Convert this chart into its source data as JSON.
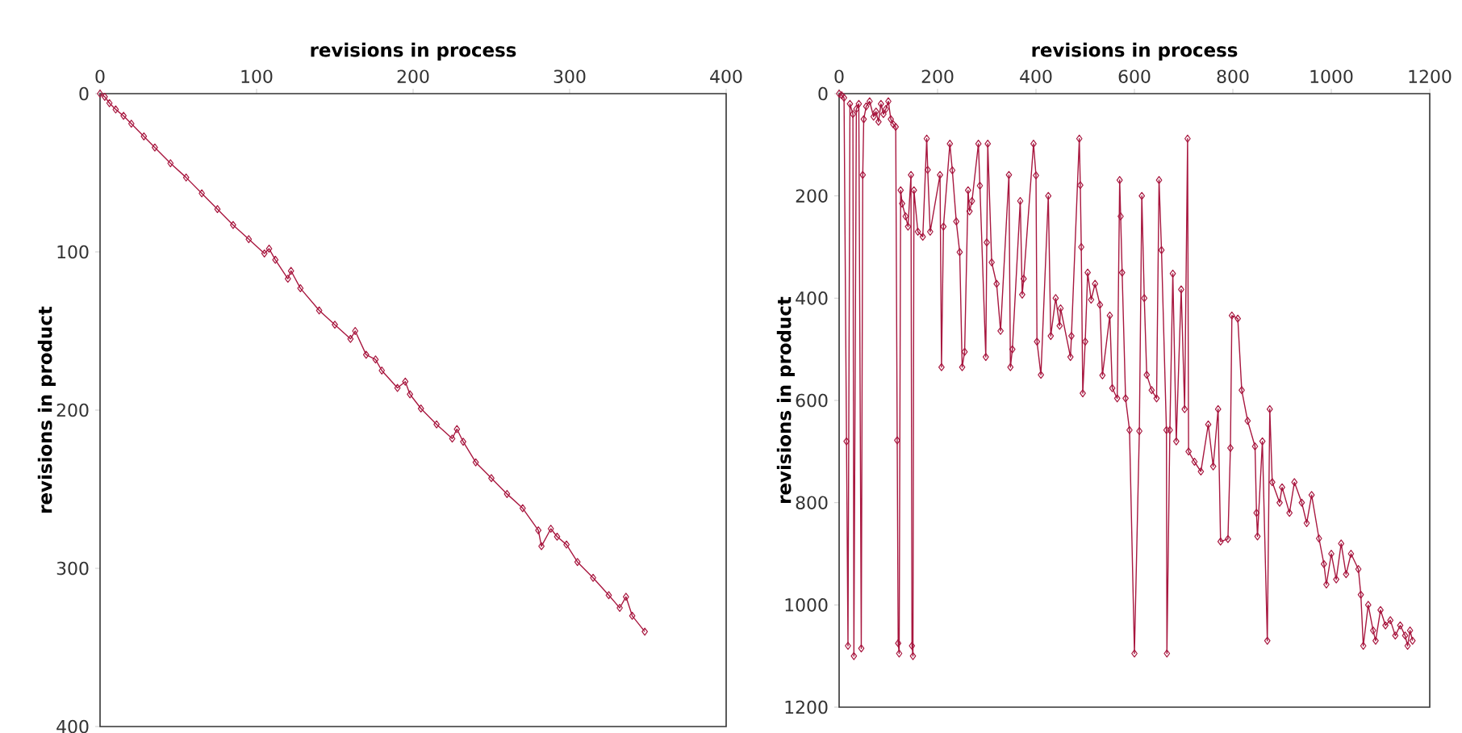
{
  "chart_data": [
    {
      "type": "line",
      "xlabel": "revisions in process",
      "ylabel": "revisions in product",
      "marker": "diamond",
      "line_style": "solid",
      "xlim": [
        0,
        400
      ],
      "ylim": [
        400,
        0
      ],
      "xticks": [
        0,
        100,
        200,
        300,
        400
      ],
      "yticks": [
        0,
        100,
        200,
        300,
        400
      ],
      "series": [
        {
          "color": "#a8173f",
          "x": [
            0,
            3,
            6,
            10,
            15,
            20,
            28,
            35,
            45,
            55,
            65,
            75,
            85,
            95,
            105,
            108,
            112,
            120,
            122,
            128,
            140,
            150,
            160,
            163,
            170,
            176,
            180,
            190,
            195,
            198,
            205,
            215,
            225,
            228,
            232,
            240,
            250,
            260,
            270,
            280,
            282,
            288,
            292,
            298,
            305,
            315,
            325,
            332,
            336,
            340,
            348
          ],
          "values": [
            0,
            2,
            6,
            10,
            14,
            19,
            27,
            34,
            44,
            53,
            63,
            73,
            83,
            92,
            101,
            98,
            105,
            117,
            112,
            123,
            137,
            146,
            155,
            150,
            165,
            168,
            175,
            186,
            182,
            190,
            199,
            209,
            218,
            212,
            220,
            233,
            243,
            253,
            262,
            276,
            286,
            275,
            280,
            285,
            296,
            306,
            317,
            325,
            318,
            330,
            340
          ]
        }
      ]
    },
    {
      "type": "line",
      "xlabel": "revisions in process",
      "ylabel": "revisions in product",
      "marker": "diamond",
      "line_style": "solid",
      "xlim": [
        0,
        1200
      ],
      "ylim": [
        1200,
        0
      ],
      "xticks": [
        0,
        200,
        400,
        600,
        800,
        1000,
        1200
      ],
      "yticks": [
        0,
        200,
        400,
        600,
        800,
        1000,
        1200
      ],
      "series": [
        {
          "color": "#a8173f",
          "x": [
            0,
            5,
            10,
            15,
            18,
            22,
            28,
            30,
            35,
            40,
            45,
            48,
            50,
            55,
            62,
            70,
            75,
            80,
            85,
            90,
            95,
            100,
            105,
            110,
            115,
            118,
            120,
            122,
            125,
            128,
            135,
            140,
            146,
            148,
            150,
            152,
            160,
            170,
            178,
            180,
            185,
            205,
            208,
            212,
            225,
            230,
            238,
            245,
            250,
            255,
            262,
            265,
            270,
            283,
            286,
            298,
            300,
            302,
            310,
            320,
            328,
            345,
            348,
            352,
            368,
            372,
            375,
            395,
            400,
            402,
            410,
            425,
            430,
            440,
            448,
            450,
            470,
            472,
            488,
            490,
            492,
            495,
            500,
            505,
            512,
            520,
            530,
            535,
            550,
            555,
            565,
            570,
            572,
            575,
            582,
            590,
            600,
            610,
            615,
            620,
            625,
            635,
            645,
            650,
            655,
            665,
            666,
            672,
            678,
            685,
            695,
            702,
            708,
            710,
            722,
            735,
            750,
            760,
            770,
            775,
            790,
            795,
            798,
            810,
            818,
            830,
            845,
            848,
            850,
            860,
            870,
            875,
            880,
            895,
            900,
            915,
            925,
            940,
            950,
            960,
            975,
            985,
            990,
            1000,
            1010,
            1020,
            1030,
            1040,
            1055,
            1060,
            1065,
            1075,
            1085,
            1090,
            1100,
            1110,
            1120,
            1130,
            1140,
            1150,
            1155,
            1160,
            1165
          ],
          "values": [
            0,
            3,
            8,
            680,
            1080,
            20,
            40,
            1100,
            30,
            20,
            1085,
            159,
            50,
            25,
            15,
            45,
            35,
            55,
            20,
            40,
            30,
            15,
            50,
            60,
            65,
            678,
            1075,
            1095,
            189,
            215,
            240,
            260,
            159,
            1080,
            1100,
            189,
            270,
            280,
            88,
            149,
            270,
            159,
            535,
            260,
            98,
            150,
            250,
            310,
            535,
            505,
            189,
            230,
            210,
            98,
            180,
            515,
            291,
            98,
            330,
            372,
            464,
            159,
            535,
            500,
            210,
            393,
            362,
            98,
            160,
            485,
            550,
            200,
            474,
            400,
            454,
            420,
            515,
            474,
            88,
            179,
            300,
            586,
            485,
            350,
            403,
            372,
            413,
            551,
            434,
            576,
            596,
            169,
            240,
            350,
            596,
            658,
            1095,
            660,
            200,
            400,
            550,
            580,
            596,
            169,
            306,
            658,
            1095,
            658,
            352,
            680,
            383,
            617,
            88,
            700,
            720,
            739,
            647,
            729,
            617,
            876,
            871,
            693,
            434,
            440,
            580,
            640,
            690,
            820,
            866,
            680,
            1070,
            617,
            760,
            800,
            770,
            820,
            760,
            800,
            840,
            785,
            870,
            920,
            960,
            900,
            950,
            880,
            940,
            900,
            930,
            980,
            1080,
            1000,
            1050,
            1070,
            1010,
            1040,
            1030,
            1060,
            1040,
            1060,
            1080,
            1050,
            1070
          ]
        }
      ]
    }
  ]
}
